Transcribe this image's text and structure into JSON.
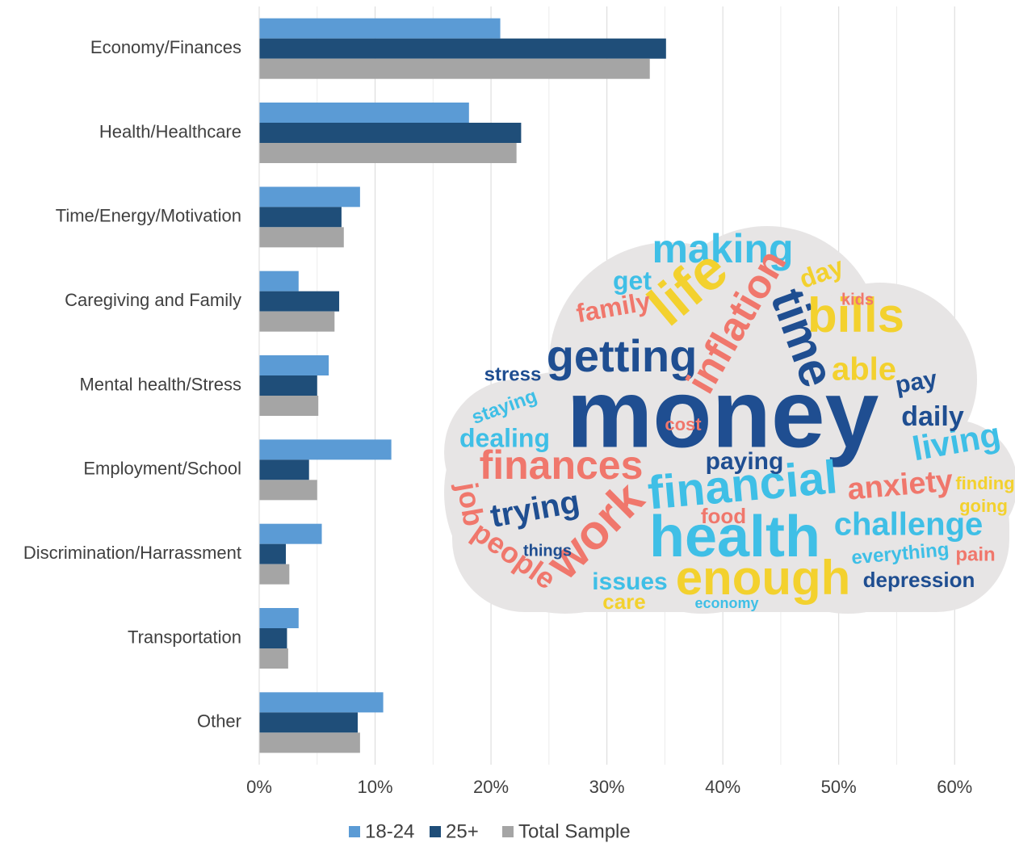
{
  "chart_data": {
    "type": "bar",
    "orientation": "horizontal",
    "categories": [
      "Economy/Finances",
      "Health/Healthcare",
      "Time/Energy/Motivation",
      "Caregiving and Family",
      "Mental health/Stress",
      "Employment/School",
      "Discrimination/Harrassment",
      "Transportation",
      "Other"
    ],
    "series": [
      {
        "name": "18-24",
        "color": "#5b9bd5",
        "values": [
          20.8,
          18.1,
          8.7,
          3.4,
          6.0,
          11.4,
          5.4,
          3.4,
          10.7
        ]
      },
      {
        "name": "25+",
        "color": "#1f4e79",
        "values": [
          35.1,
          22.6,
          7.1,
          6.9,
          5.0,
          4.3,
          2.3,
          2.4,
          8.5
        ]
      },
      {
        "name": "Total Sample",
        "color": "#a5a5a5",
        "values": [
          33.7,
          22.2,
          7.3,
          6.5,
          5.1,
          5.0,
          2.6,
          2.5,
          8.7
        ]
      }
    ],
    "xlim": [
      0,
      65
    ],
    "xticks": [
      {
        "value": 0,
        "label": "0%"
      },
      {
        "value": 10,
        "label": "10%"
      },
      {
        "value": 20,
        "label": "20%"
      },
      {
        "value": 30,
        "label": "30%"
      },
      {
        "value": 40,
        "label": "40%"
      },
      {
        "value": 50,
        "label": "50%"
      },
      {
        "value": 60,
        "label": "60%"
      }
    ],
    "minor_xticks": [
      5,
      15,
      25,
      35,
      45,
      55
    ],
    "grid": true,
    "legend": "bottom",
    "word_cloud": [
      "money",
      "getting",
      "health",
      "enough",
      "financial",
      "finances",
      "work",
      "making",
      "life",
      "time",
      "inflation",
      "bills",
      "able",
      "living",
      "daily",
      "anxiety",
      "challenge",
      "paying",
      "trying",
      "family",
      "stress",
      "dealing",
      "job",
      "people",
      "issues",
      "care",
      "food",
      "kids",
      "day",
      "pay",
      "pain",
      "depression",
      "everything",
      "things",
      "cost",
      "get",
      "finding",
      "going",
      "economy",
      "staying"
    ]
  }
}
